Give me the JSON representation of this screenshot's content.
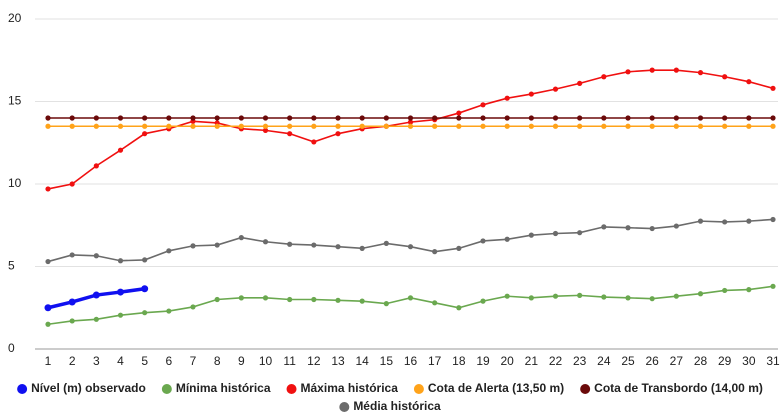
{
  "chart_data": {
    "type": "line",
    "categories": [
      1,
      2,
      3,
      4,
      5,
      6,
      7,
      8,
      9,
      10,
      11,
      12,
      13,
      14,
      15,
      16,
      17,
      18,
      19,
      20,
      21,
      22,
      23,
      24,
      25,
      26,
      27,
      28,
      29,
      30,
      31
    ],
    "ylim": [
      0,
      20
    ],
    "yticks": [
      0,
      5,
      10,
      15,
      20
    ],
    "grid": true,
    "series": [
      {
        "name": "Nível (m) observado",
        "color": "#1010f0",
        "values": [
          2.5,
          2.85,
          3.27,
          3.45,
          3.65,
          null,
          null,
          null,
          null,
          null,
          null,
          null,
          null,
          null,
          null,
          null,
          null,
          null,
          null,
          null,
          null,
          null,
          null,
          null,
          null,
          null,
          null,
          null,
          null,
          null,
          null
        ]
      },
      {
        "name": "Mínima histórica",
        "color": "#6aa84f",
        "values": [
          1.5,
          1.7,
          1.8,
          2.05,
          2.2,
          2.3,
          2.55,
          3.0,
          3.1,
          3.1,
          3.0,
          3.0,
          2.95,
          2.9,
          2.75,
          3.1,
          2.8,
          2.5,
          2.9,
          3.2,
          3.1,
          3.2,
          3.25,
          3.15,
          3.1,
          3.05,
          3.2,
          3.35,
          3.55,
          3.6,
          3.8
        ]
      },
      {
        "name": "Máxima histórica",
        "color": "#f01010",
        "values": [
          9.7,
          10.0,
          11.1,
          12.05,
          13.05,
          13.35,
          13.8,
          13.7,
          13.35,
          13.25,
          13.05,
          12.55,
          13.05,
          13.35,
          13.5,
          13.75,
          13.9,
          14.3,
          14.8,
          15.2,
          15.45,
          15.75,
          16.1,
          16.5,
          16.8,
          16.9,
          16.9,
          16.75,
          16.5,
          16.2,
          15.8
        ]
      },
      {
        "name": "Cota de Alerta (13,50 m)",
        "color": "#ffa31a",
        "values": [
          13.5,
          13.5,
          13.5,
          13.5,
          13.5,
          13.5,
          13.5,
          13.5,
          13.5,
          13.5,
          13.5,
          13.5,
          13.5,
          13.5,
          13.5,
          13.5,
          13.5,
          13.5,
          13.5,
          13.5,
          13.5,
          13.5,
          13.5,
          13.5,
          13.5,
          13.5,
          13.5,
          13.5,
          13.5,
          13.5,
          13.5
        ]
      },
      {
        "name": "Cota de Transbordo (14,00 m)",
        "color": "#6b0a0a",
        "values": [
          14,
          14,
          14,
          14,
          14,
          14,
          14,
          14,
          14,
          14,
          14,
          14,
          14,
          14,
          14,
          14,
          14,
          14,
          14,
          14,
          14,
          14,
          14,
          14,
          14,
          14,
          14,
          14,
          14,
          14,
          14
        ]
      },
      {
        "name": "Média histórica",
        "color": "#6b6b6b",
        "values": [
          5.3,
          5.7,
          5.65,
          5.35,
          5.4,
          5.95,
          6.25,
          6.3,
          6.75,
          6.5,
          6.35,
          6.3,
          6.2,
          6.1,
          6.4,
          6.2,
          5.9,
          6.1,
          6.55,
          6.65,
          6.9,
          7.0,
          7.05,
          7.4,
          7.35,
          7.3,
          7.45,
          7.75,
          7.7,
          7.75,
          7.85
        ]
      }
    ]
  }
}
